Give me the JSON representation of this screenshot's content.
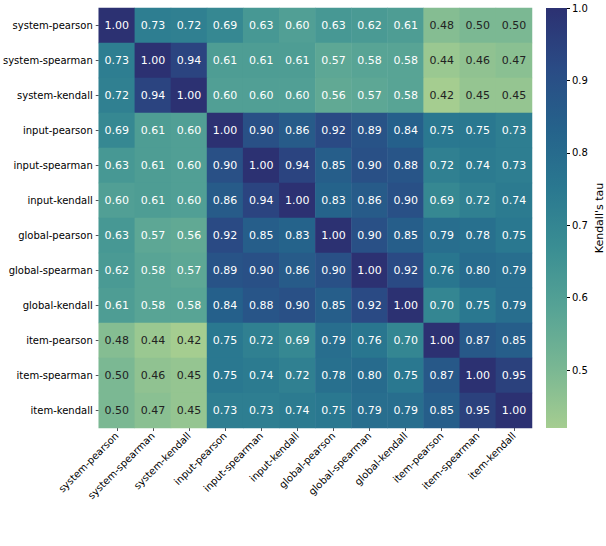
{
  "chart_data": {
    "type": "heatmap",
    "x_categories": [
      "system-pearson",
      "system-spearman",
      "system-kendall",
      "input-pearson",
      "input-spearman",
      "input-kendall",
      "global-pearson",
      "global-spearman",
      "global-kendall",
      "item-pearson",
      "item-spearman",
      "item-kendall"
    ],
    "y_categories": [
      "system-pearson",
      "system-spearman",
      "system-kendall",
      "input-pearson",
      "input-spearman",
      "input-kendall",
      "global-pearson",
      "global-spearman",
      "global-kendall",
      "item-pearson",
      "item-spearman",
      "item-kendall"
    ],
    "values": [
      [
        1.0,
        0.73,
        0.72,
        0.69,
        0.63,
        0.6,
        0.63,
        0.62,
        0.61,
        0.48,
        0.5,
        0.5
      ],
      [
        0.73,
        1.0,
        0.94,
        0.61,
        0.61,
        0.61,
        0.57,
        0.58,
        0.58,
        0.44,
        0.46,
        0.47
      ],
      [
        0.72,
        0.94,
        1.0,
        0.6,
        0.6,
        0.6,
        0.56,
        0.57,
        0.58,
        0.42,
        0.45,
        0.45
      ],
      [
        0.69,
        0.61,
        0.6,
        1.0,
        0.9,
        0.86,
        0.92,
        0.89,
        0.84,
        0.75,
        0.75,
        0.73
      ],
      [
        0.63,
        0.61,
        0.6,
        0.9,
        1.0,
        0.94,
        0.85,
        0.9,
        0.88,
        0.72,
        0.74,
        0.73
      ],
      [
        0.6,
        0.61,
        0.6,
        0.86,
        0.94,
        1.0,
        0.83,
        0.86,
        0.9,
        0.69,
        0.72,
        0.74
      ],
      [
        0.63,
        0.57,
        0.56,
        0.92,
        0.85,
        0.83,
        1.0,
        0.9,
        0.85,
        0.79,
        0.78,
        0.75
      ],
      [
        0.62,
        0.58,
        0.57,
        0.89,
        0.9,
        0.86,
        0.9,
        1.0,
        0.92,
        0.76,
        0.8,
        0.79
      ],
      [
        0.61,
        0.58,
        0.58,
        0.84,
        0.88,
        0.9,
        0.85,
        0.92,
        1.0,
        0.7,
        0.75,
        0.79
      ],
      [
        0.48,
        0.44,
        0.42,
        0.75,
        0.72,
        0.69,
        0.79,
        0.76,
        0.7,
        1.0,
        0.87,
        0.85
      ],
      [
        0.5,
        0.46,
        0.45,
        0.75,
        0.74,
        0.72,
        0.78,
        0.8,
        0.75,
        0.87,
        1.0,
        0.95
      ],
      [
        0.5,
        0.47,
        0.45,
        0.73,
        0.73,
        0.74,
        0.75,
        0.79,
        0.79,
        0.85,
        0.95,
        1.0
      ]
    ],
    "value_labels": [
      [
        "1.00",
        "0.73",
        "0.72",
        "0.69",
        "0.63",
        "0.60",
        "0.63",
        "0.62",
        "0.61",
        "0.48",
        "0.50",
        "0.50"
      ],
      [
        "0.73",
        "1.00",
        "0.94",
        "0.61",
        "0.61",
        "0.61",
        "0.57",
        "0.58",
        "0.58",
        "0.44",
        "0.46",
        "0.47"
      ],
      [
        "0.72",
        "0.94",
        "1.00",
        "0.60",
        "0.60",
        "0.60",
        "0.56",
        "0.57",
        "0.58",
        "0.42",
        "0.45",
        "0.45"
      ],
      [
        "0.69",
        "0.61",
        "0.60",
        "1.00",
        "0.90",
        "0.86",
        "0.92",
        "0.89",
        "0.84",
        "0.75",
        "0.75",
        "0.73"
      ],
      [
        "0.63",
        "0.61",
        "0.60",
        "0.90",
        "1.00",
        "0.94",
        "0.85",
        "0.90",
        "0.88",
        "0.72",
        "0.74",
        "0.73"
      ],
      [
        "0.60",
        "0.61",
        "0.60",
        "0.86",
        "0.94",
        "1.00",
        "0.83",
        "0.86",
        "0.90",
        "0.69",
        "0.72",
        "0.74"
      ],
      [
        "0.63",
        "0.57",
        "0.56",
        "0.92",
        "0.85",
        "0.83",
        "1.00",
        "0.90",
        "0.85",
        "0.79",
        "0.78",
        "0.75"
      ],
      [
        "0.62",
        "0.58",
        "0.57",
        "0.89",
        "0.90",
        "0.86",
        "0.90",
        "1.00",
        "0.92",
        "0.76",
        "0.80",
        "0.79"
      ],
      [
        "0.61",
        "0.58",
        "0.58",
        "0.84",
        "0.88",
        "0.90",
        "0.85",
        "0.92",
        "1.00",
        "0.70",
        "0.75",
        "0.79"
      ],
      [
        "0.48",
        "0.44",
        "0.42",
        "0.75",
        "0.72",
        "0.69",
        "0.79",
        "0.76",
        "0.70",
        "1.00",
        "0.87",
        "0.85"
      ],
      [
        "0.50",
        "0.46",
        "0.45",
        "0.75",
        "0.74",
        "0.72",
        "0.78",
        "0.80",
        "0.75",
        "0.87",
        "1.00",
        "0.95"
      ],
      [
        "0.50",
        "0.47",
        "0.45",
        "0.73",
        "0.73",
        "0.74",
        "0.75",
        "0.79",
        "0.79",
        "0.85",
        "0.95",
        "1.00"
      ]
    ],
    "data_labels": true,
    "colorbar": {
      "label": "Kendall's tau",
      "range": [
        0.42,
        1.0
      ],
      "ticks": [
        0.5,
        0.6,
        0.7,
        0.8,
        0.9,
        {
          "value": 1,
          "label": "1.0"
        }
      ]
    }
  }
}
